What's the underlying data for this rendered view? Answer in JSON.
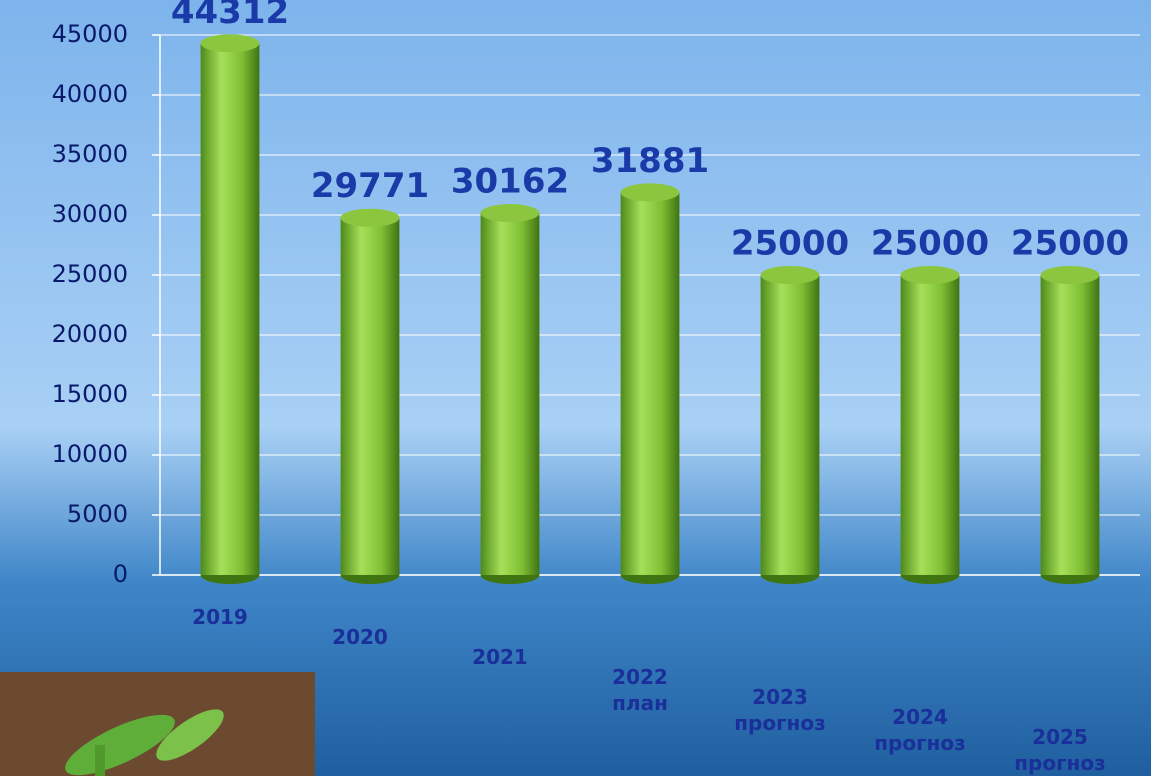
{
  "chart_data": {
    "type": "bar",
    "categories": [
      [
        "2019"
      ],
      [
        "2020"
      ],
      [
        "2021"
      ],
      [
        "2022",
        "план"
      ],
      [
        "2023",
        "прогноз"
      ],
      [
        "2024",
        "прогноз"
      ],
      [
        "2025",
        "прогноз"
      ]
    ],
    "values": [
      44312,
      29771,
      30162,
      31881,
      25000,
      25000,
      25000
    ],
    "color": "#8cc63f",
    "ylim": [
      0,
      45000
    ],
    "yticks": [
      0,
      5000,
      10000,
      15000,
      20000,
      25000,
      30000,
      35000,
      40000,
      45000
    ],
    "grid": true
  }
}
